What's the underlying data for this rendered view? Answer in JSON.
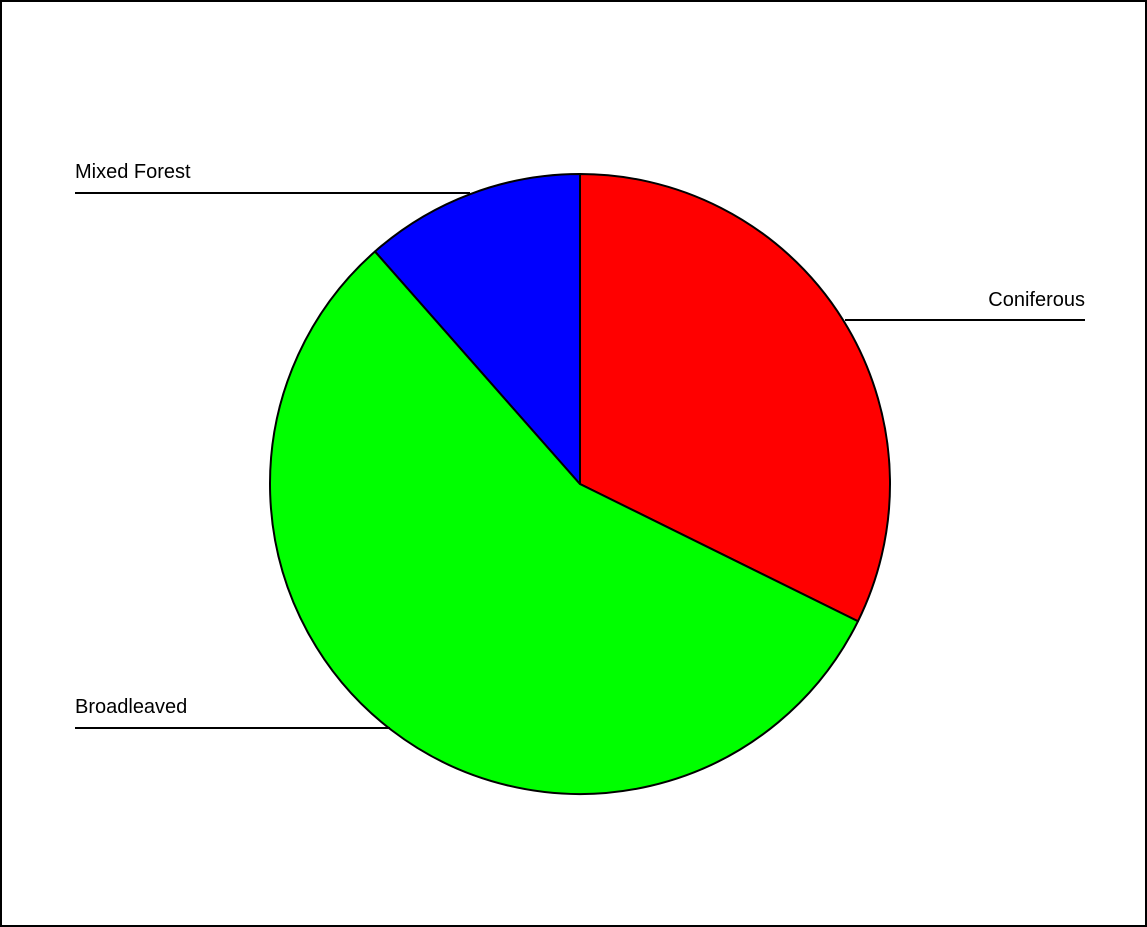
{
  "chart_data": {
    "type": "pie",
    "title": "",
    "slices": [
      {
        "label": "Coniferous",
        "value": 32.3,
        "color": "#ff0000"
      },
      {
        "label": "Broadleaved",
        "value": 56.2,
        "color": "#00ff00"
      },
      {
        "label": "Mixed Forest",
        "value": 11.5,
        "color": "#0000ff"
      }
    ],
    "start_angle_deg": 0,
    "direction": "clockwise",
    "legend": "none",
    "labels": "leader-lines"
  }
}
